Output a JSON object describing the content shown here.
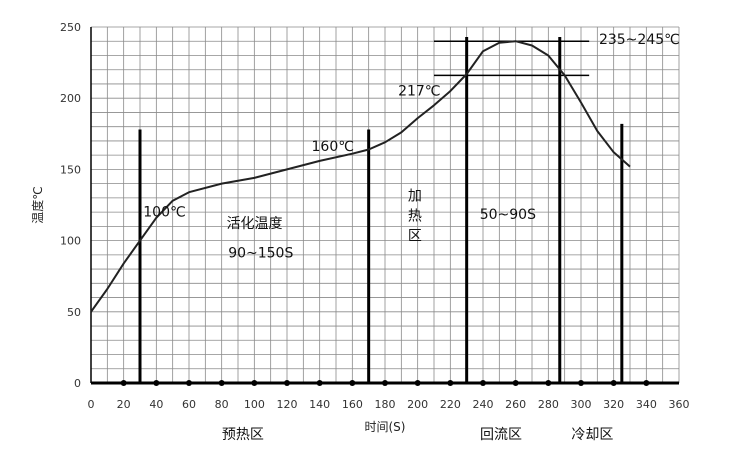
{
  "chart_data": {
    "type": "line",
    "title": "",
    "xlabel": "时间(S)",
    "ylabel": "温度℃",
    "xlim": [
      0,
      360
    ],
    "ylim": [
      0,
      250
    ],
    "x_ticks": [
      0,
      20,
      40,
      60,
      80,
      100,
      120,
      140,
      160,
      180,
      200,
      220,
      240,
      260,
      280,
      300,
      320,
      340,
      360
    ],
    "y_ticks": [
      0,
      50,
      100,
      150,
      200,
      250
    ],
    "grid": true,
    "series": [
      {
        "x": [
          0,
          10,
          20,
          30,
          40,
          50,
          60,
          80,
          100,
          120,
          140,
          160,
          170,
          180,
          190,
          200,
          210,
          220,
          230,
          240,
          250,
          260,
          270,
          280,
          290,
          300,
          310,
          320,
          330
        ],
        "y": [
          50,
          66,
          84,
          100,
          116,
          128,
          134,
          140,
          144,
          150,
          156,
          161,
          164,
          169,
          176,
          186,
          195,
          205,
          217,
          233,
          239,
          240,
          237,
          230,
          216,
          197,
          177,
          162,
          152
        ]
      }
    ],
    "vertical_markers": [
      {
        "x": 30,
        "y_top": 178
      },
      {
        "x": 170,
        "y_top": 178
      },
      {
        "x": 230,
        "y_top": 243
      },
      {
        "x": 287,
        "y_top": 243
      },
      {
        "x": 325,
        "y_top": 182
      }
    ],
    "horizontal_markers": [
      {
        "y": 240,
        "x_start": 210,
        "x_end": 305
      },
      {
        "y": 216,
        "x_start": 210,
        "x_end": 305
      }
    ],
    "annotations": [
      {
        "text": "235~245℃",
        "x": 311,
        "y": 238
      },
      {
        "text": "217℃",
        "x": 188,
        "y": 202
      },
      {
        "text": "160℃",
        "x": 135,
        "y": 163
      },
      {
        "text": "100℃",
        "x": 32,
        "y": 117
      },
      {
        "text": "活化温度",
        "x": 83,
        "y": 109
      },
      {
        "text": "90~150S",
        "x": 84,
        "y": 88
      },
      {
        "text": "加",
        "x": 194,
        "y": 128
      },
      {
        "text": "热",
        "x": 194,
        "y": 114
      },
      {
        "text": "区",
        "x": 194,
        "y": 100
      },
      {
        "text": "50~90S",
        "x": 238,
        "y": 115
      }
    ],
    "zone_labels": [
      {
        "text": "预热区",
        "x": 93
      },
      {
        "text": "回流区",
        "x": 251
      },
      {
        "text": "冷却区",
        "x": 307
      }
    ]
  }
}
